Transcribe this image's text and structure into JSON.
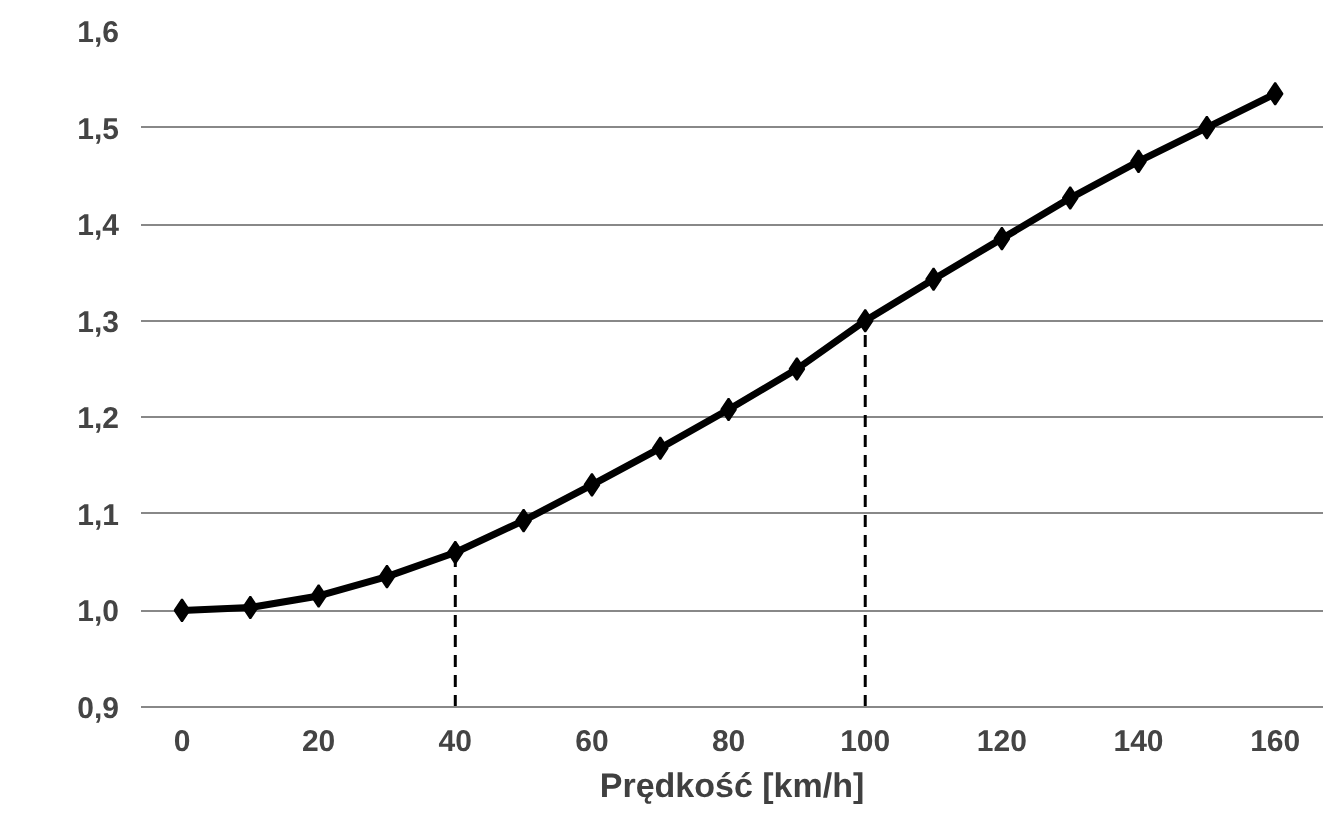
{
  "chart_data": {
    "type": "line",
    "xlabel": "Prędkość [km/h]",
    "x": [
      0,
      10,
      20,
      30,
      40,
      50,
      60,
      70,
      80,
      90,
      100,
      110,
      120,
      130,
      140,
      150,
      160
    ],
    "series": [
      {
        "color": "#000000",
        "values": [
          1.0,
          1.003,
          1.015,
          1.035,
          1.06,
          1.093,
          1.13,
          1.168,
          1.208,
          1.25,
          1.3,
          1.343,
          1.385,
          1.427,
          1.465,
          1.5,
          1.535
        ]
      }
    ],
    "xlim": [
      -6,
      167
    ],
    "ylim": [
      0.9,
      1.6
    ],
    "xticks": [
      0,
      20,
      40,
      60,
      80,
      100,
      120,
      140,
      160
    ],
    "yticks": [
      {
        "value": 0.9,
        "label": "0,9"
      },
      {
        "value": 1.0,
        "label": "1,0"
      },
      {
        "value": 1.1,
        "label": "1,1"
      },
      {
        "value": 1.2,
        "label": "1,2"
      },
      {
        "value": 1.3,
        "label": "1,3"
      },
      {
        "value": 1.4,
        "label": "1,4"
      },
      {
        "value": 1.5,
        "label": "1,5"
      },
      {
        "value": 1.6,
        "label": "1,6"
      }
    ],
    "ref_lines": [
      {
        "axis": "x",
        "value": 40,
        "line_style": "dashed",
        "color": "#000000"
      },
      {
        "axis": "x",
        "value": 100,
        "line_style": "dashed",
        "color": "#000000"
      }
    ],
    "grid": "y",
    "marker": "diamond",
    "line_style": "solid"
  }
}
